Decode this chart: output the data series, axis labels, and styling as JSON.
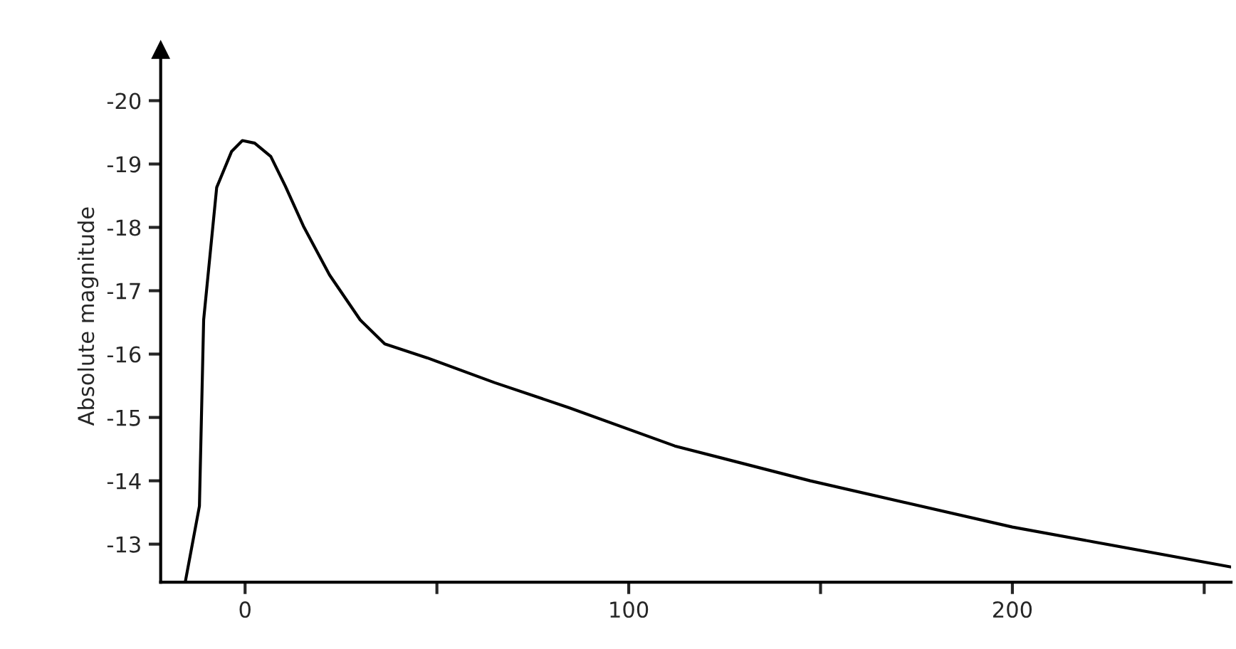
{
  "chart_data": {
    "type": "line",
    "ylabel": "Absolute magnitude",
    "x": [
      -15.6,
      -11.9,
      -10.8,
      -7.4,
      -3.5,
      -0.7,
      2.5,
      6.7,
      10.5,
      15.2,
      22,
      30,
      36.4,
      47.5,
      65,
      84.6,
      112,
      147.3,
      200,
      257
    ],
    "series": [
      {
        "color": "#000000",
        "values": [
          -12.4,
          -13.6,
          -16.54,
          -18.63,
          -19.2,
          -19.37,
          -19.33,
          -19.12,
          -18.65,
          -18.02,
          -17.25,
          -16.54,
          -16.16,
          -15.94,
          -15.55,
          -15.15,
          -14.55,
          -14.0,
          -13.27,
          -12.64
        ]
      }
    ],
    "xlim": [
      -22,
      257
    ],
    "xticks": [
      0,
      {
        "value": 50,
        "label": null
      },
      100,
      {
        "value": 150,
        "label": null
      },
      200,
      {
        "value": 250,
        "label": null
      }
    ],
    "ylim": [
      -12.4,
      -20.8
    ],
    "yticks": [
      -20,
      -19,
      -18,
      -17,
      -16,
      -15,
      -14,
      -13
    ],
    "grid": false,
    "marker": "none",
    "line_style": "solid"
  }
}
